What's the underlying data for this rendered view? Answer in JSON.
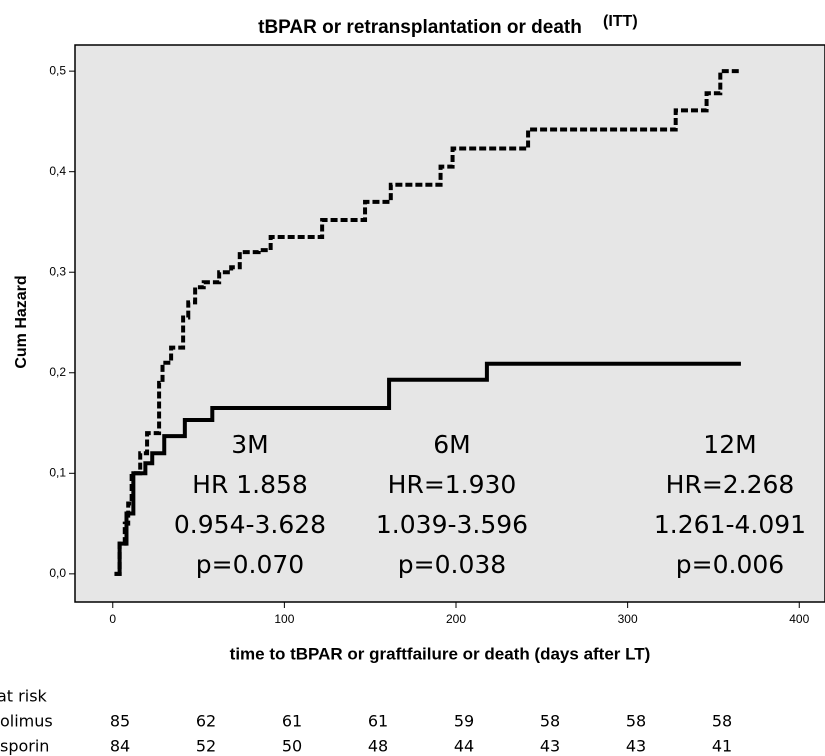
{
  "chart_data": {
    "type": "step",
    "title": "tBPAR or retransplantation or death",
    "title_superscript": "(ITT)",
    "x_label": "time to tBPAR or graftfailure or death (days after LT)",
    "y_label": "Cum Hazard",
    "xlim": [
      -22,
      415
    ],
    "ylim": [
      -0.028,
      0.526
    ],
    "xticks": [
      0,
      100,
      200,
      300,
      400
    ],
    "yticks": [
      {
        "value": 0,
        "label": "0,0"
      },
      {
        "value": 0.1,
        "label": "0,1"
      },
      {
        "value": 0.2,
        "label": "0,2"
      },
      {
        "value": 0.3,
        "label": "0,3"
      },
      {
        "value": 0.4,
        "label": "0,4"
      },
      {
        "value": 0.5,
        "label": "0,5"
      }
    ],
    "background": "#e6e6e6",
    "series": [
      {
        "color": "#000000",
        "dash": true,
        "x": [
          1,
          4,
          7,
          9,
          11,
          16,
          20,
          27,
          29,
          34,
          41,
          44,
          48,
          53,
          62,
          69,
          74,
          85,
          92,
          122,
          147,
          162,
          191,
          198,
          242,
          328,
          346,
          354,
          366
        ],
        "values": [
          0,
          0.03,
          0.05,
          0.07,
          0.1,
          0.12,
          0.14,
          0.19,
          0.21,
          0.225,
          0.255,
          0.27,
          0.285,
          0.29,
          0.3,
          0.305,
          0.32,
          0.322,
          0.335,
          0.352,
          0.37,
          0.387,
          0.405,
          0.423,
          0.442,
          0.461,
          0.478,
          0.5,
          0.5
        ]
      },
      {
        "color": "#000000",
        "dash": false,
        "x": [
          1,
          4,
          8,
          12,
          19,
          23,
          30,
          42,
          58,
          161,
          218,
          366
        ],
        "values": [
          0,
          0.03,
          0.06,
          0.1,
          0.11,
          0.12,
          0.137,
          0.153,
          0.165,
          0.193,
          0.209,
          0.209
        ]
      }
    ],
    "annotations": [
      [
        "3M",
        "HR 1.858",
        "0.954-3.628",
        "p=0.070"
      ],
      [
        "6M",
        "HR=1.930",
        "1.039-3.596",
        "p=0.038"
      ],
      [
        "12M",
        "HR=2.268",
        "1.261-4.091",
        "p=0.006"
      ]
    ],
    "risk_table": {
      "title": "at risk",
      "rows": [
        {
          "label": "olimus",
          "values": [
            85,
            62,
            61,
            61,
            59,
            58,
            58,
            58
          ]
        },
        {
          "label": "sporin",
          "values": [
            84,
            52,
            50,
            48,
            44,
            43,
            43,
            41
          ]
        }
      ]
    }
  }
}
